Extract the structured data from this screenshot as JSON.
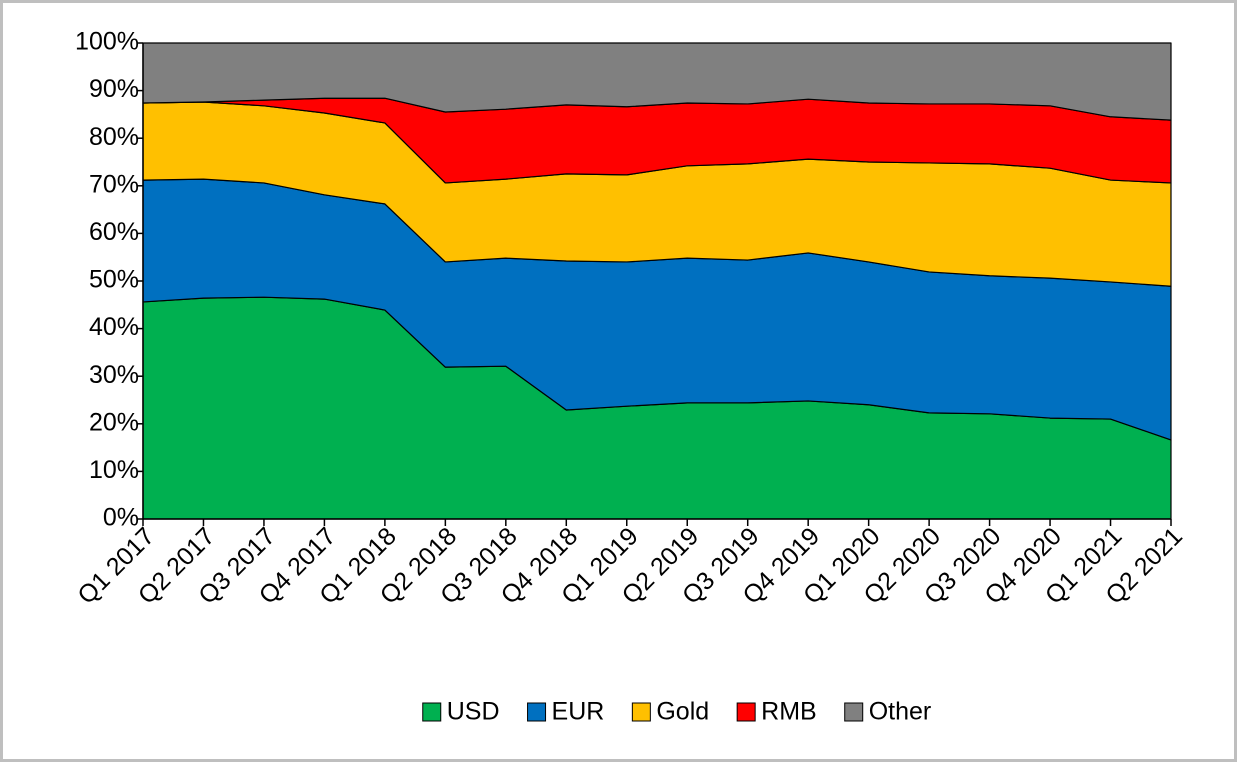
{
  "chart_data": {
    "type": "stacked_area_percent",
    "categories": [
      "Q1 2017",
      "Q2 2017",
      "Q3 2017",
      "Q4 2017",
      "Q1 2018",
      "Q2 2018",
      "Q3 2018",
      "Q4 2018",
      "Q1 2019",
      "Q2 2019",
      "Q3 2019",
      "Q4 2019",
      "Q1 2020",
      "Q2 2020",
      "Q3 2020",
      "Q4 2020",
      "Q1 2021",
      "Q2 2021"
    ],
    "series": [
      {
        "name": "USD",
        "color": "#00b050",
        "values": [
          45.6,
          46.4,
          46.6,
          46.2,
          43.9,
          31.9,
          32.1,
          22.9,
          23.7,
          24.4,
          24.4,
          24.8,
          24,
          22.3,
          22.1,
          21.2,
          21,
          16.6
        ]
      },
      {
        "name": "EUR",
        "color": "#0070c0",
        "values": [
          25.6,
          25,
          24,
          21.9,
          22.3,
          22.1,
          22.7,
          31.3,
          30.3,
          30.4,
          30,
          31.1,
          30,
          29.6,
          29,
          29.4,
          28.8,
          32.3
        ]
      },
      {
        "name": "Gold",
        "color": "#ffc000",
        "values": [
          16.2,
          16.2,
          16.2,
          17.2,
          17,
          16.6,
          16.6,
          18.3,
          18.3,
          19.4,
          20.2,
          19.7,
          21,
          22.9,
          23.5,
          23.1,
          21.4,
          21.7
        ]
      },
      {
        "name": "RMB",
        "color": "#ff0000",
        "values": [
          0,
          0,
          1.2,
          3.1,
          5.2,
          14.9,
          14.7,
          14.5,
          14.3,
          13.2,
          12.6,
          12.6,
          12.4,
          12.4,
          12.6,
          13.1,
          13.3,
          13.2
        ]
      },
      {
        "name": "Other",
        "color": "#808080",
        "values": [
          12.6,
          12.4,
          12,
          11.6,
          11.6,
          14.5,
          13.9,
          13,
          13.4,
          12.6,
          12.8,
          11.8,
          12.6,
          12.8,
          12.8,
          13.2,
          15.5,
          16.2
        ]
      }
    ],
    "ylim": [
      0,
      100
    ],
    "yticks": [
      {
        "value": 0,
        "label": "0%"
      },
      {
        "value": 10,
        "label": "10%"
      },
      {
        "value": 20,
        "label": "20%"
      },
      {
        "value": 30,
        "label": "30%"
      },
      {
        "value": 40,
        "label": "40%"
      },
      {
        "value": 50,
        "label": "50%"
      },
      {
        "value": 60,
        "label": "60%"
      },
      {
        "value": 70,
        "label": "70%"
      },
      {
        "value": 80,
        "label": "80%"
      },
      {
        "value": 90,
        "label": "90%"
      },
      {
        "value": 100,
        "label": "100%"
      }
    ],
    "legend": "bottom"
  }
}
